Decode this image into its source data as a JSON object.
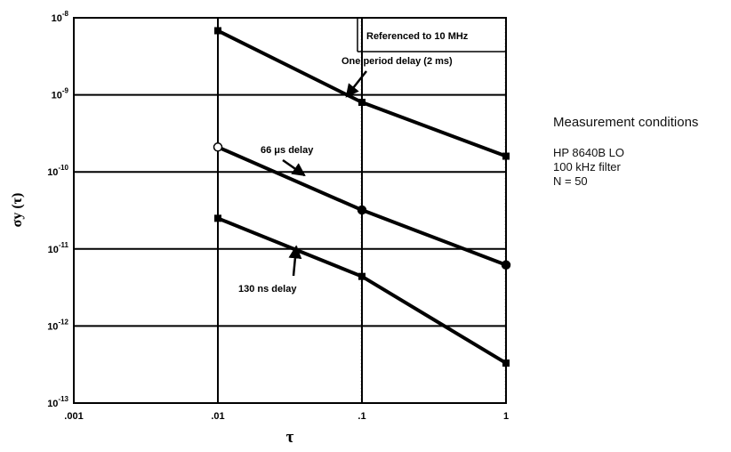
{
  "chart_data": {
    "type": "line",
    "x_scale": "log",
    "y_scale": "log",
    "xlim": [
      0.001,
      1
    ],
    "ylim": [
      1e-13,
      1e-08
    ],
    "xlabel": "τ",
    "ylabel": "σy (τ)",
    "x_ticks": [
      {
        "value": 0.001,
        "label": ".001"
      },
      {
        "value": 0.01,
        "label": ".01"
      },
      {
        "value": 0.1,
        "label": ".1"
      },
      {
        "value": 1,
        "label": "1"
      }
    ],
    "y_ticks": [
      {
        "value": 1e-13,
        "exp": "-13"
      },
      {
        "value": 1e-12,
        "exp": "-12"
      },
      {
        "value": 1e-11,
        "exp": "-11"
      },
      {
        "value": 1e-10,
        "exp": "-10"
      },
      {
        "value": 1e-09,
        "exp": "-9"
      },
      {
        "value": 1e-08,
        "exp": "-8"
      }
    ],
    "y_tick_base": "10",
    "grid": true,
    "series": [
      {
        "name": "One period delay (2 ms)",
        "marker": "square",
        "points": [
          [
            0.01,
            6.8e-09
          ],
          [
            0.1,
            8e-10
          ],
          [
            1,
            1.6e-10
          ]
        ]
      },
      {
        "name": "66 μs delay",
        "marker": "circle",
        "points": [
          [
            0.01,
            2.1e-10
          ],
          [
            0.1,
            3.2e-11
          ],
          [
            1,
            6.2e-12
          ]
        ]
      },
      {
        "name": "130 ns delay",
        "marker": "square",
        "points": [
          [
            0.01,
            2.5e-11
          ],
          [
            0.1,
            4.4e-12
          ],
          [
            1,
            3.3e-13
          ]
        ]
      }
    ],
    "annotations": [
      {
        "text": "Referenced to 10 MHz"
      },
      {
        "text": "One period delay (2 ms)",
        "arrow_to": [
          0.078,
          9.5e-10
        ]
      },
      {
        "text": "66 μs delay",
        "arrow_to": [
          0.04,
          9e-11
        ]
      },
      {
        "text": "130 ns delay",
        "arrow_to": [
          0.035,
          1.08e-11
        ]
      }
    ]
  },
  "notes": {
    "heading": "Measurement conditions",
    "lines": [
      "HP 8640B LO",
      "100 kHz filter",
      "N = 50"
    ]
  }
}
